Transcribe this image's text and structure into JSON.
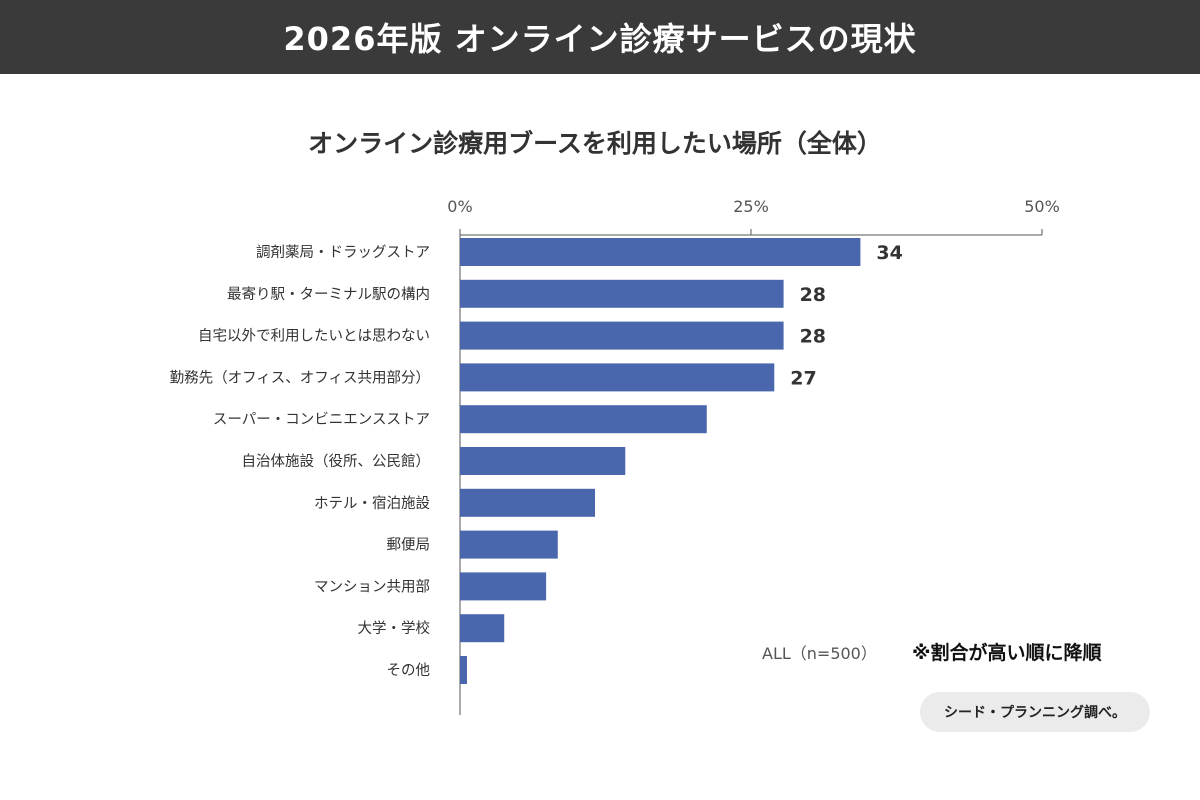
{
  "header": {
    "title": "2026年版 オンライン診療サービスの現状"
  },
  "chart_data": {
    "type": "bar",
    "orientation": "horizontal",
    "title": "オンライン診療用ブースを利用したい場所（全体）",
    "categories": [
      "調剤薬局・ドラッグストア",
      "最寄り駅・ターミナル駅の構内",
      "自宅以外で利用したいとは思わない",
      "勤務先（オフィス、オフィス共用部分）",
      "スーパー・コンビニエンスストア",
      "自治体施設（役所、公民館）",
      "ホテル・宿泊施設",
      "郵便局",
      "マンション共用部",
      "大学・学校",
      "その他"
    ],
    "values": [
      34.4,
      27.8,
      27.8,
      27.0,
      21.2,
      14.2,
      11.6,
      8.4,
      7.4,
      3.8,
      0.6
    ],
    "data_labels": [
      "34",
      "28",
      "28",
      "27",
      null,
      null,
      null,
      null,
      null,
      null,
      null
    ],
    "xlim": [
      0,
      50
    ],
    "xticks": [
      0,
      25,
      50
    ],
    "xtick_labels": [
      "0%",
      "25%",
      "50%"
    ],
    "axis_position": "top",
    "bar_color": "#4a67ad",
    "grid": false
  },
  "notes": {
    "sample": "ALL（n=500）",
    "sort_note": "※割合が高い順に降順",
    "source": "シード・プランニング調べ。"
  },
  "colors": {
    "header_bg": "#3a3a3a",
    "bar": "#4a67ad",
    "badge_bg": "#ebebeb"
  }
}
